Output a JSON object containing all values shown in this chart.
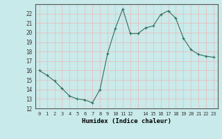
{
  "x": [
    0,
    1,
    2,
    3,
    4,
    5,
    6,
    7,
    8,
    9,
    10,
    11,
    12,
    13,
    14,
    15,
    16,
    17,
    18,
    19,
    20,
    21,
    22,
    23
  ],
  "y": [
    16,
    15.5,
    14.9,
    14.1,
    13.3,
    13.0,
    12.9,
    12.6,
    14.0,
    17.8,
    20.4,
    22.5,
    19.9,
    19.9,
    20.5,
    20.7,
    21.9,
    22.3,
    21.5,
    19.4,
    18.2,
    17.7,
    17.5,
    17.4
  ],
  "xlim": [
    -0.5,
    23.5
  ],
  "ylim": [
    12,
    23
  ],
  "yticks": [
    12,
    13,
    14,
    15,
    16,
    17,
    18,
    19,
    20,
    21,
    22
  ],
  "xtick_labels": [
    "0",
    "1",
    "2",
    "3",
    "4",
    "5",
    "6",
    "7",
    "8",
    "9",
    "10",
    "11",
    "12",
    "",
    "14",
    "15",
    "16",
    "17",
    "18",
    "19",
    "20",
    "21",
    "22",
    "23"
  ],
  "xlabel": "Humidex (Indice chaleur)",
  "line_color": "#2d6e5e",
  "marker": "P",
  "marker_size": 2.0,
  "bg_color": "#c9eaea",
  "grid_major_color": "#e8c0c0",
  "grid_minor_color": "#ddeaea"
}
